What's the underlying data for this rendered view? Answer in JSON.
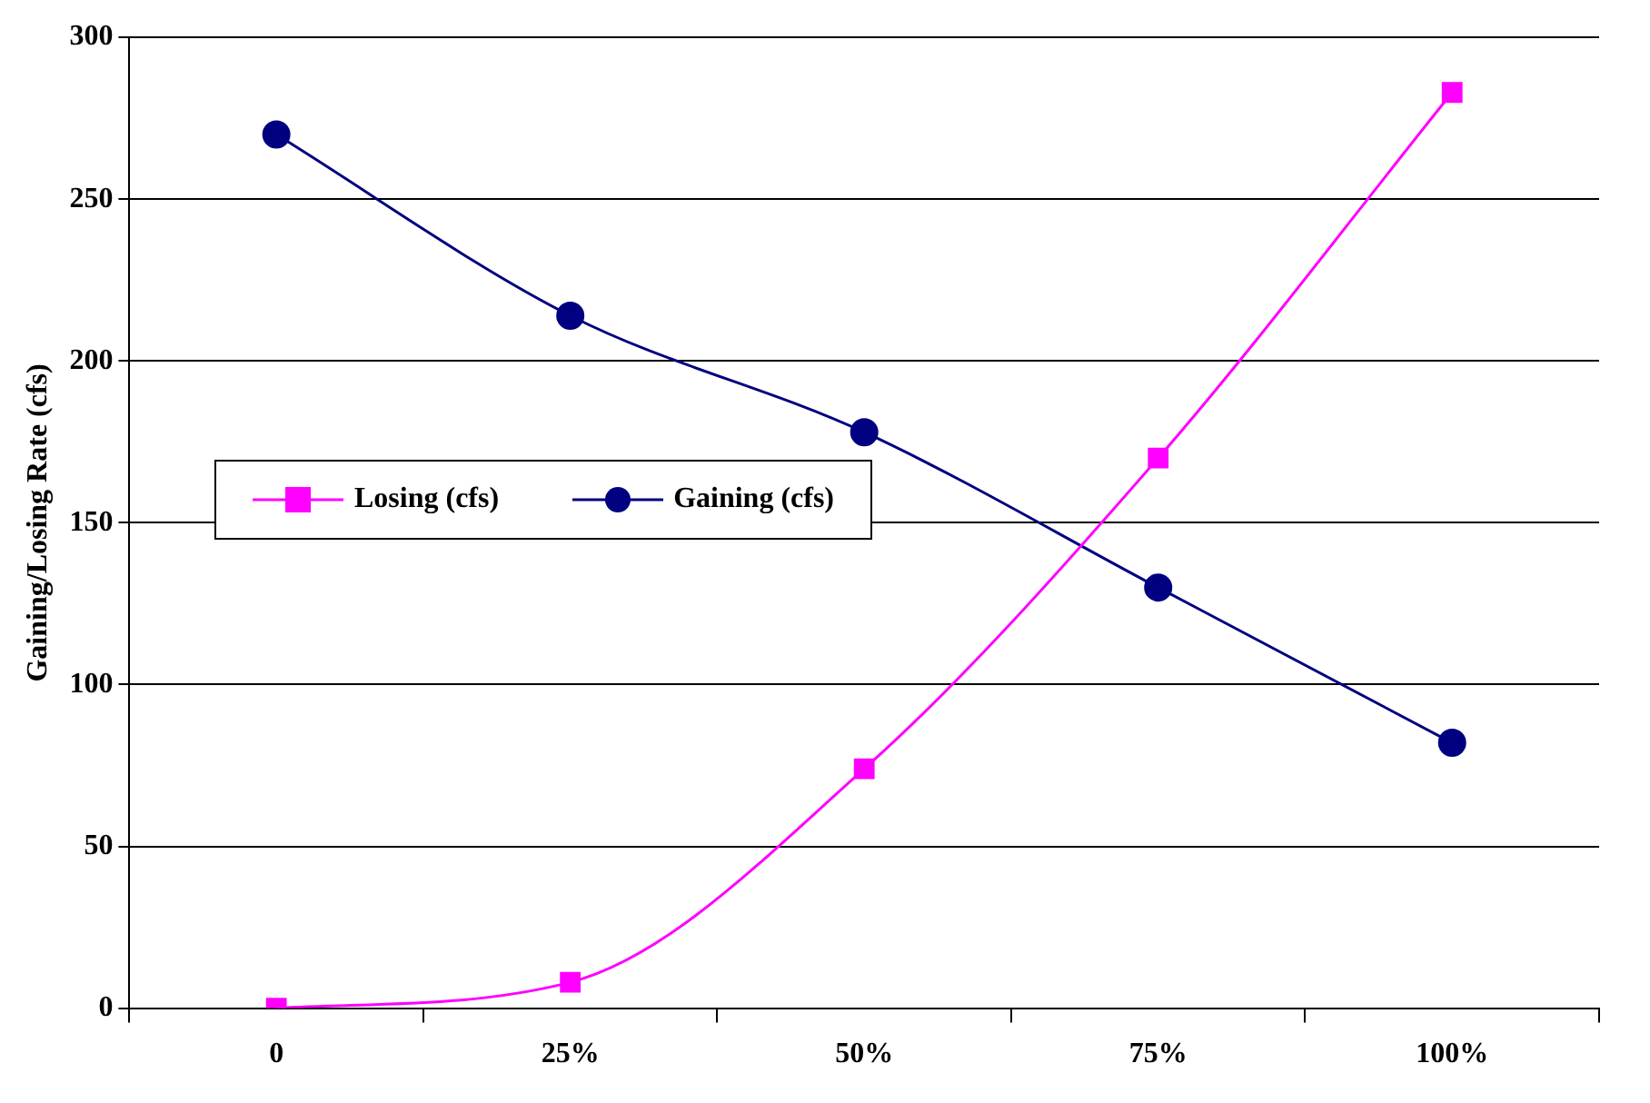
{
  "chart_data": {
    "type": "line",
    "ylabel": "Gaining/Losing Rate (cfs)",
    "categories": [
      "0",
      "25%",
      "50%",
      "75%",
      "100%"
    ],
    "series": [
      {
        "name": "Losing (cfs)",
        "color": "#ff00ff",
        "values": [
          0,
          8,
          74,
          170,
          283
        ],
        "marker": "square"
      },
      {
        "name": "Gaining (cfs)",
        "color": "#000080",
        "values": [
          270,
          214,
          178,
          130,
          82
        ],
        "marker": "circle"
      }
    ],
    "ylim": [
      0,
      300
    ],
    "yticks": [
      0,
      50,
      100,
      150,
      200,
      250,
      300
    ],
    "grid": "y",
    "legend": "left"
  }
}
